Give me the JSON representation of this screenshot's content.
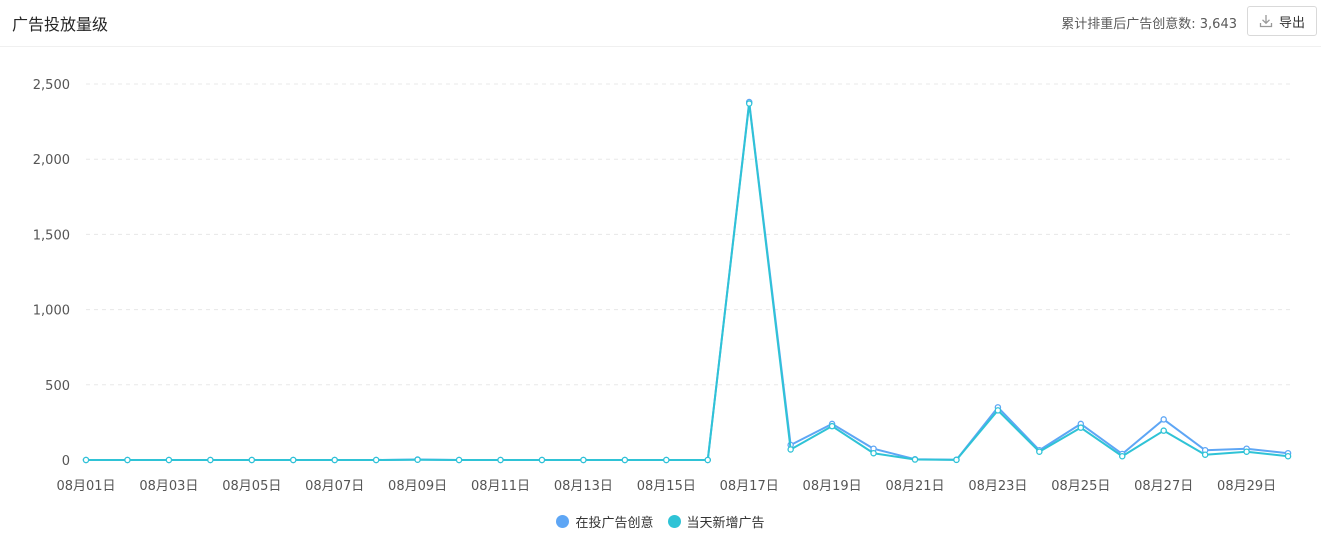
{
  "header": {
    "title": "广告投放量级",
    "count_text": "累计排重后广告创意数: 3,643",
    "export_label": "导出",
    "export_icon": "download-icon"
  },
  "colors": {
    "series_active": "#5ea6f5",
    "series_new": "#2fc3d6",
    "grid": "#e8e8e8",
    "axis_text": "#555555"
  },
  "chart_data": {
    "type": "line",
    "x": [
      "08月01日",
      "08月02日",
      "08月03日",
      "08月04日",
      "08月05日",
      "08月06日",
      "08月07日",
      "08月08日",
      "08月09日",
      "08月10日",
      "08月11日",
      "08月12日",
      "08月13日",
      "08月14日",
      "08月15日",
      "08月16日",
      "08月17日",
      "08月18日",
      "08月19日",
      "08月20日",
      "08月21日",
      "08月22日",
      "08月23日",
      "08月24日",
      "08月25日",
      "08月26日",
      "08月27日",
      "08月28日",
      "08月29日",
      "08月30日"
    ],
    "x_tick_labels": [
      "08月01日",
      "08月03日",
      "08月05日",
      "08月07日",
      "08月09日",
      "08月11日",
      "08月13日",
      "08月15日",
      "08月17日",
      "08月19日",
      "08月21日",
      "08月23日",
      "08月25日",
      "08月27日",
      "08月29日"
    ],
    "y_ticks": [
      0,
      500,
      1000,
      1500,
      2000,
      2500
    ],
    "y_tick_labels": [
      "0",
      "500",
      "1,000",
      "1,500",
      "2,000",
      "2,500"
    ],
    "ylim": [
      0,
      2500
    ],
    "grid": "horizontal-dashed",
    "legend_position": "bottom-center",
    "series": [
      {
        "name": "在投广告创意",
        "color": "#5ea6f5",
        "values": [
          0,
          0,
          0,
          0,
          0,
          0,
          0,
          0,
          3,
          0,
          0,
          0,
          0,
          0,
          0,
          0,
          2380,
          100,
          240,
          75,
          5,
          2,
          350,
          65,
          240,
          40,
          270,
          65,
          75,
          45
        ]
      },
      {
        "name": "当天新增广告",
        "color": "#2fc3d6",
        "values": [
          0,
          0,
          0,
          0,
          0,
          0,
          0,
          0,
          2,
          0,
          0,
          0,
          0,
          0,
          0,
          0,
          2370,
          70,
          225,
          45,
          3,
          1,
          330,
          55,
          215,
          25,
          195,
          35,
          55,
          25
        ]
      }
    ]
  }
}
